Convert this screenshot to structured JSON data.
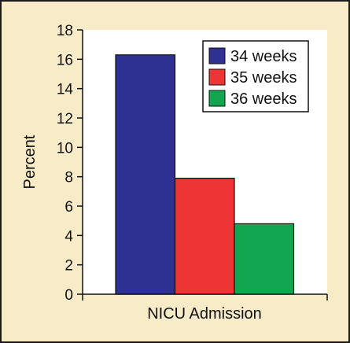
{
  "chart_data": {
    "type": "bar",
    "categories": [
      "NICU Admission"
    ],
    "series": [
      {
        "name": "34 weeks",
        "values": [
          16.3
        ],
        "color": "#2e3192"
      },
      {
        "name": "35 weeks",
        "values": [
          7.9
        ],
        "color": "#ee3535"
      },
      {
        "name": "36 weeks",
        "values": [
          4.8
        ],
        "color": "#12a651"
      }
    ],
    "title": "",
    "xlabel": "NICU Admission",
    "ylabel": "Percent",
    "ylim": [
      0,
      18
    ],
    "yticks": [
      0,
      2,
      4,
      6,
      8,
      10,
      12,
      14,
      16,
      18
    ],
    "ytick_labels": [
      "0",
      "2",
      "4",
      "6",
      "8",
      "10",
      "12",
      "14",
      "16",
      "18"
    ],
    "legend_position": "top-right",
    "grid": false,
    "plot_background": "#ffffff",
    "figure_background": "#f7ebc8"
  }
}
